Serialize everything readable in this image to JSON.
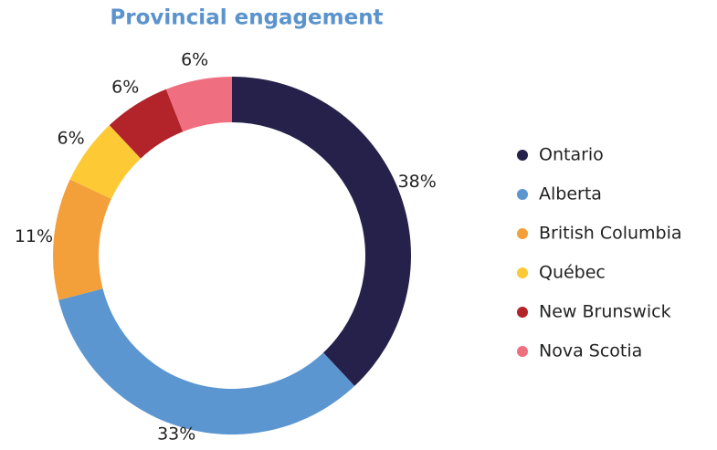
{
  "chart_data": {
    "type": "donut",
    "title": "Provincial engagement",
    "categories": [
      "Ontario",
      "Alberta",
      "British Columbia",
      "Québec",
      "New Brunswick",
      "Nova Scotia"
    ],
    "values": [
      38,
      33,
      11,
      6,
      6,
      6
    ],
    "value_labels": [
      "38%",
      "33%",
      "11%",
      "6%",
      "6%",
      "6%"
    ],
    "colors": [
      "#25214a",
      "#5b96d1",
      "#f3a03a",
      "#fdc935",
      "#b2232a",
      "#ef6f80"
    ],
    "legend": "right"
  }
}
